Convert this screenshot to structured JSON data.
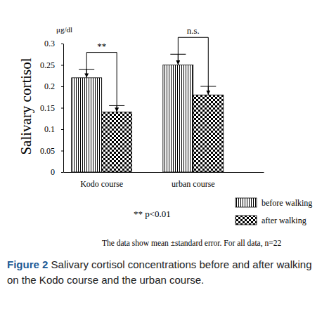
{
  "chart_data": {
    "type": "bar",
    "ylabel": "Salivary cortisol",
    "yunit": "μg/dl",
    "categories": [
      "Kodo course",
      "urban course"
    ],
    "series": [
      {
        "name": "before walking",
        "color": "#000000",
        "values": [
          0.22,
          0.25
        ],
        "errors": [
          0.02,
          0.025
        ]
      },
      {
        "name": "after walking",
        "color": "#000000",
        "values": [
          0.14,
          0.18
        ],
        "errors": [
          0.015,
          0.02
        ]
      }
    ],
    "ylim": [
      0,
      0.3
    ],
    "yticks": [
      0,
      0.05,
      0.1,
      0.15,
      0.2,
      0.25,
      0.3
    ],
    "grid": false,
    "legend": "lower right",
    "significance": [
      "**",
      "n.s."
    ],
    "annotations": [
      "** p<0.01",
      "The data show mean ±standard error. For all data, n=22"
    ],
    "caption": {
      "label": "Figure 2",
      "text": "Salivary cortisol concentrations before and after walking on the Kodo course and the urban course."
    }
  }
}
